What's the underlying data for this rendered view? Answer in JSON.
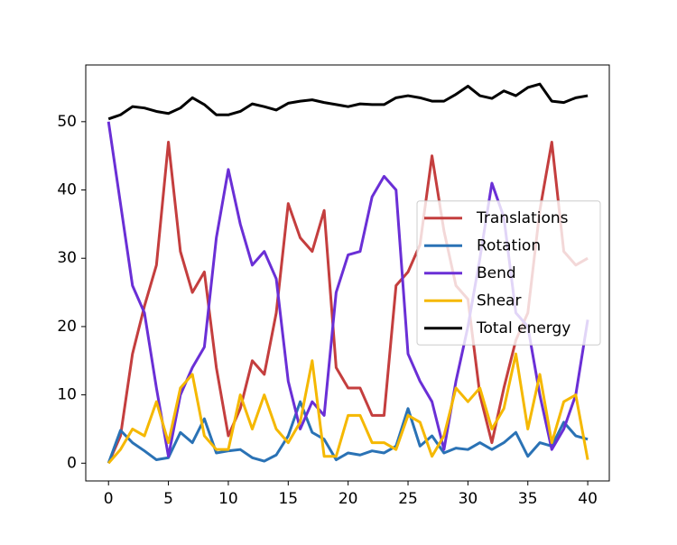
{
  "chart_data": {
    "type": "line",
    "x": [
      0,
      1,
      2,
      3,
      4,
      5,
      6,
      7,
      8,
      9,
      10,
      11,
      12,
      13,
      14,
      15,
      16,
      17,
      18,
      19,
      20,
      21,
      22,
      23,
      24,
      25,
      26,
      27,
      28,
      29,
      30,
      31,
      32,
      33,
      34,
      35,
      36,
      37,
      38,
      39,
      40
    ],
    "series": [
      {
        "name": "Translations",
        "color": "#c43e3e",
        "values": [
          0,
          4,
          16,
          23,
          29,
          47,
          31,
          25,
          28,
          14,
          4,
          8,
          15,
          13,
          22,
          38,
          33,
          31,
          37,
          14,
          11,
          11,
          7,
          7,
          26,
          28,
          32,
          45,
          34,
          26,
          24,
          10,
          3,
          11,
          18,
          22,
          37,
          47,
          31,
          29,
          30
        ]
      },
      {
        "name": "Rotation",
        "color": "#2a72b5",
        "values": [
          0,
          4.8,
          3,
          1.8,
          0.5,
          0.8,
          4.5,
          3,
          6.5,
          1.5,
          1.8,
          2,
          0.8,
          0.3,
          1.2,
          4,
          9,
          4.5,
          3.5,
          0.5,
          1.5,
          1.2,
          1.8,
          1.5,
          2.5,
          8,
          2.5,
          4,
          1.5,
          2.2,
          2,
          3,
          2,
          3,
          4.5,
          1,
          3,
          2.5,
          6,
          4,
          3.5
        ]
      },
      {
        "name": "Bend",
        "color": "#6a2fd6",
        "values": [
          50,
          38,
          26,
          22,
          11,
          1,
          10,
          14,
          17,
          33,
          43,
          35,
          29,
          31,
          27,
          12,
          5,
          9,
          7,
          25,
          30.5,
          31,
          39,
          42,
          40,
          16,
          12,
          9,
          2,
          12,
          20,
          30,
          41,
          36,
          22,
          20,
          10,
          2,
          5,
          10,
          21
        ]
      },
      {
        "name": "Shear",
        "color": "#f5b800",
        "values": [
          0,
          2,
          5,
          4,
          9,
          3,
          11,
          13,
          4,
          2,
          2,
          10,
          5,
          10,
          5,
          3,
          6,
          15,
          1,
          1,
          7,
          7,
          3,
          3,
          2,
          7,
          6,
          1,
          4,
          11,
          9,
          11,
          5,
          8,
          16,
          5,
          13,
          3,
          9,
          10,
          0.5
        ]
      },
      {
        "name": "Total energy",
        "color": "#000000",
        "values": [
          50.4,
          51,
          52.2,
          52,
          51.5,
          51.2,
          52,
          53.5,
          52.5,
          51,
          51,
          51.5,
          52.6,
          52.2,
          51.7,
          52.7,
          53,
          53.2,
          52.8,
          52.5,
          52.2,
          52.6,
          52.5,
          52.5,
          53.5,
          53.8,
          53.5,
          53,
          53,
          54,
          55.2,
          53.8,
          53.4,
          54.5,
          53.8,
          55,
          55.5,
          53,
          52.8,
          53.5,
          53.8
        ]
      }
    ],
    "xlim": [
      -1.9,
      41.8
    ],
    "ylim": [
      -2.6,
      58.3
    ],
    "xticks": [
      0,
      5,
      10,
      15,
      20,
      25,
      30,
      35,
      40
    ],
    "yticks": [
      0,
      10,
      20,
      30,
      40,
      50
    ],
    "legend": "center right"
  }
}
